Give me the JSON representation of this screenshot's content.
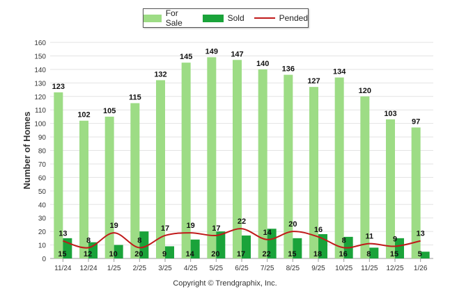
{
  "chart_data": {
    "type": "bar",
    "categories": [
      "11/24",
      "12/24",
      "1/25",
      "2/25",
      "3/25",
      "4/25",
      "5/25",
      "6/25",
      "7/25",
      "8/25",
      "9/25",
      "10/25",
      "11/25",
      "12/25",
      "1/26"
    ],
    "series": [
      {
        "name": "For Sale",
        "type": "bar",
        "color": "#9ddc85",
        "values": [
          123,
          102,
          105,
          115,
          132,
          145,
          149,
          147,
          140,
          136,
          127,
          134,
          120,
          103,
          97
        ]
      },
      {
        "name": "Sold",
        "type": "bar",
        "color": "#1aa33a",
        "values": [
          15,
          12,
          10,
          20,
          9,
          14,
          20,
          17,
          22,
          15,
          18,
          16,
          8,
          15,
          5
        ]
      },
      {
        "name": "Pended",
        "type": "line",
        "color": "#c0191a",
        "values": [
          13,
          8,
          19,
          8,
          17,
          19,
          17,
          22,
          14,
          20,
          16,
          8,
          11,
          9,
          13
        ]
      }
    ],
    "ylabel": "Number of Homes",
    "xlabel": "",
    "ylim": [
      0,
      160
    ],
    "yticks": [
      0,
      10,
      20,
      30,
      40,
      50,
      60,
      70,
      80,
      90,
      100,
      110,
      120,
      130,
      140,
      150,
      160
    ],
    "grid": true,
    "legend_position": "top-center"
  },
  "footer": {
    "copyright": "Copyright © Trendgraphix, Inc."
  }
}
